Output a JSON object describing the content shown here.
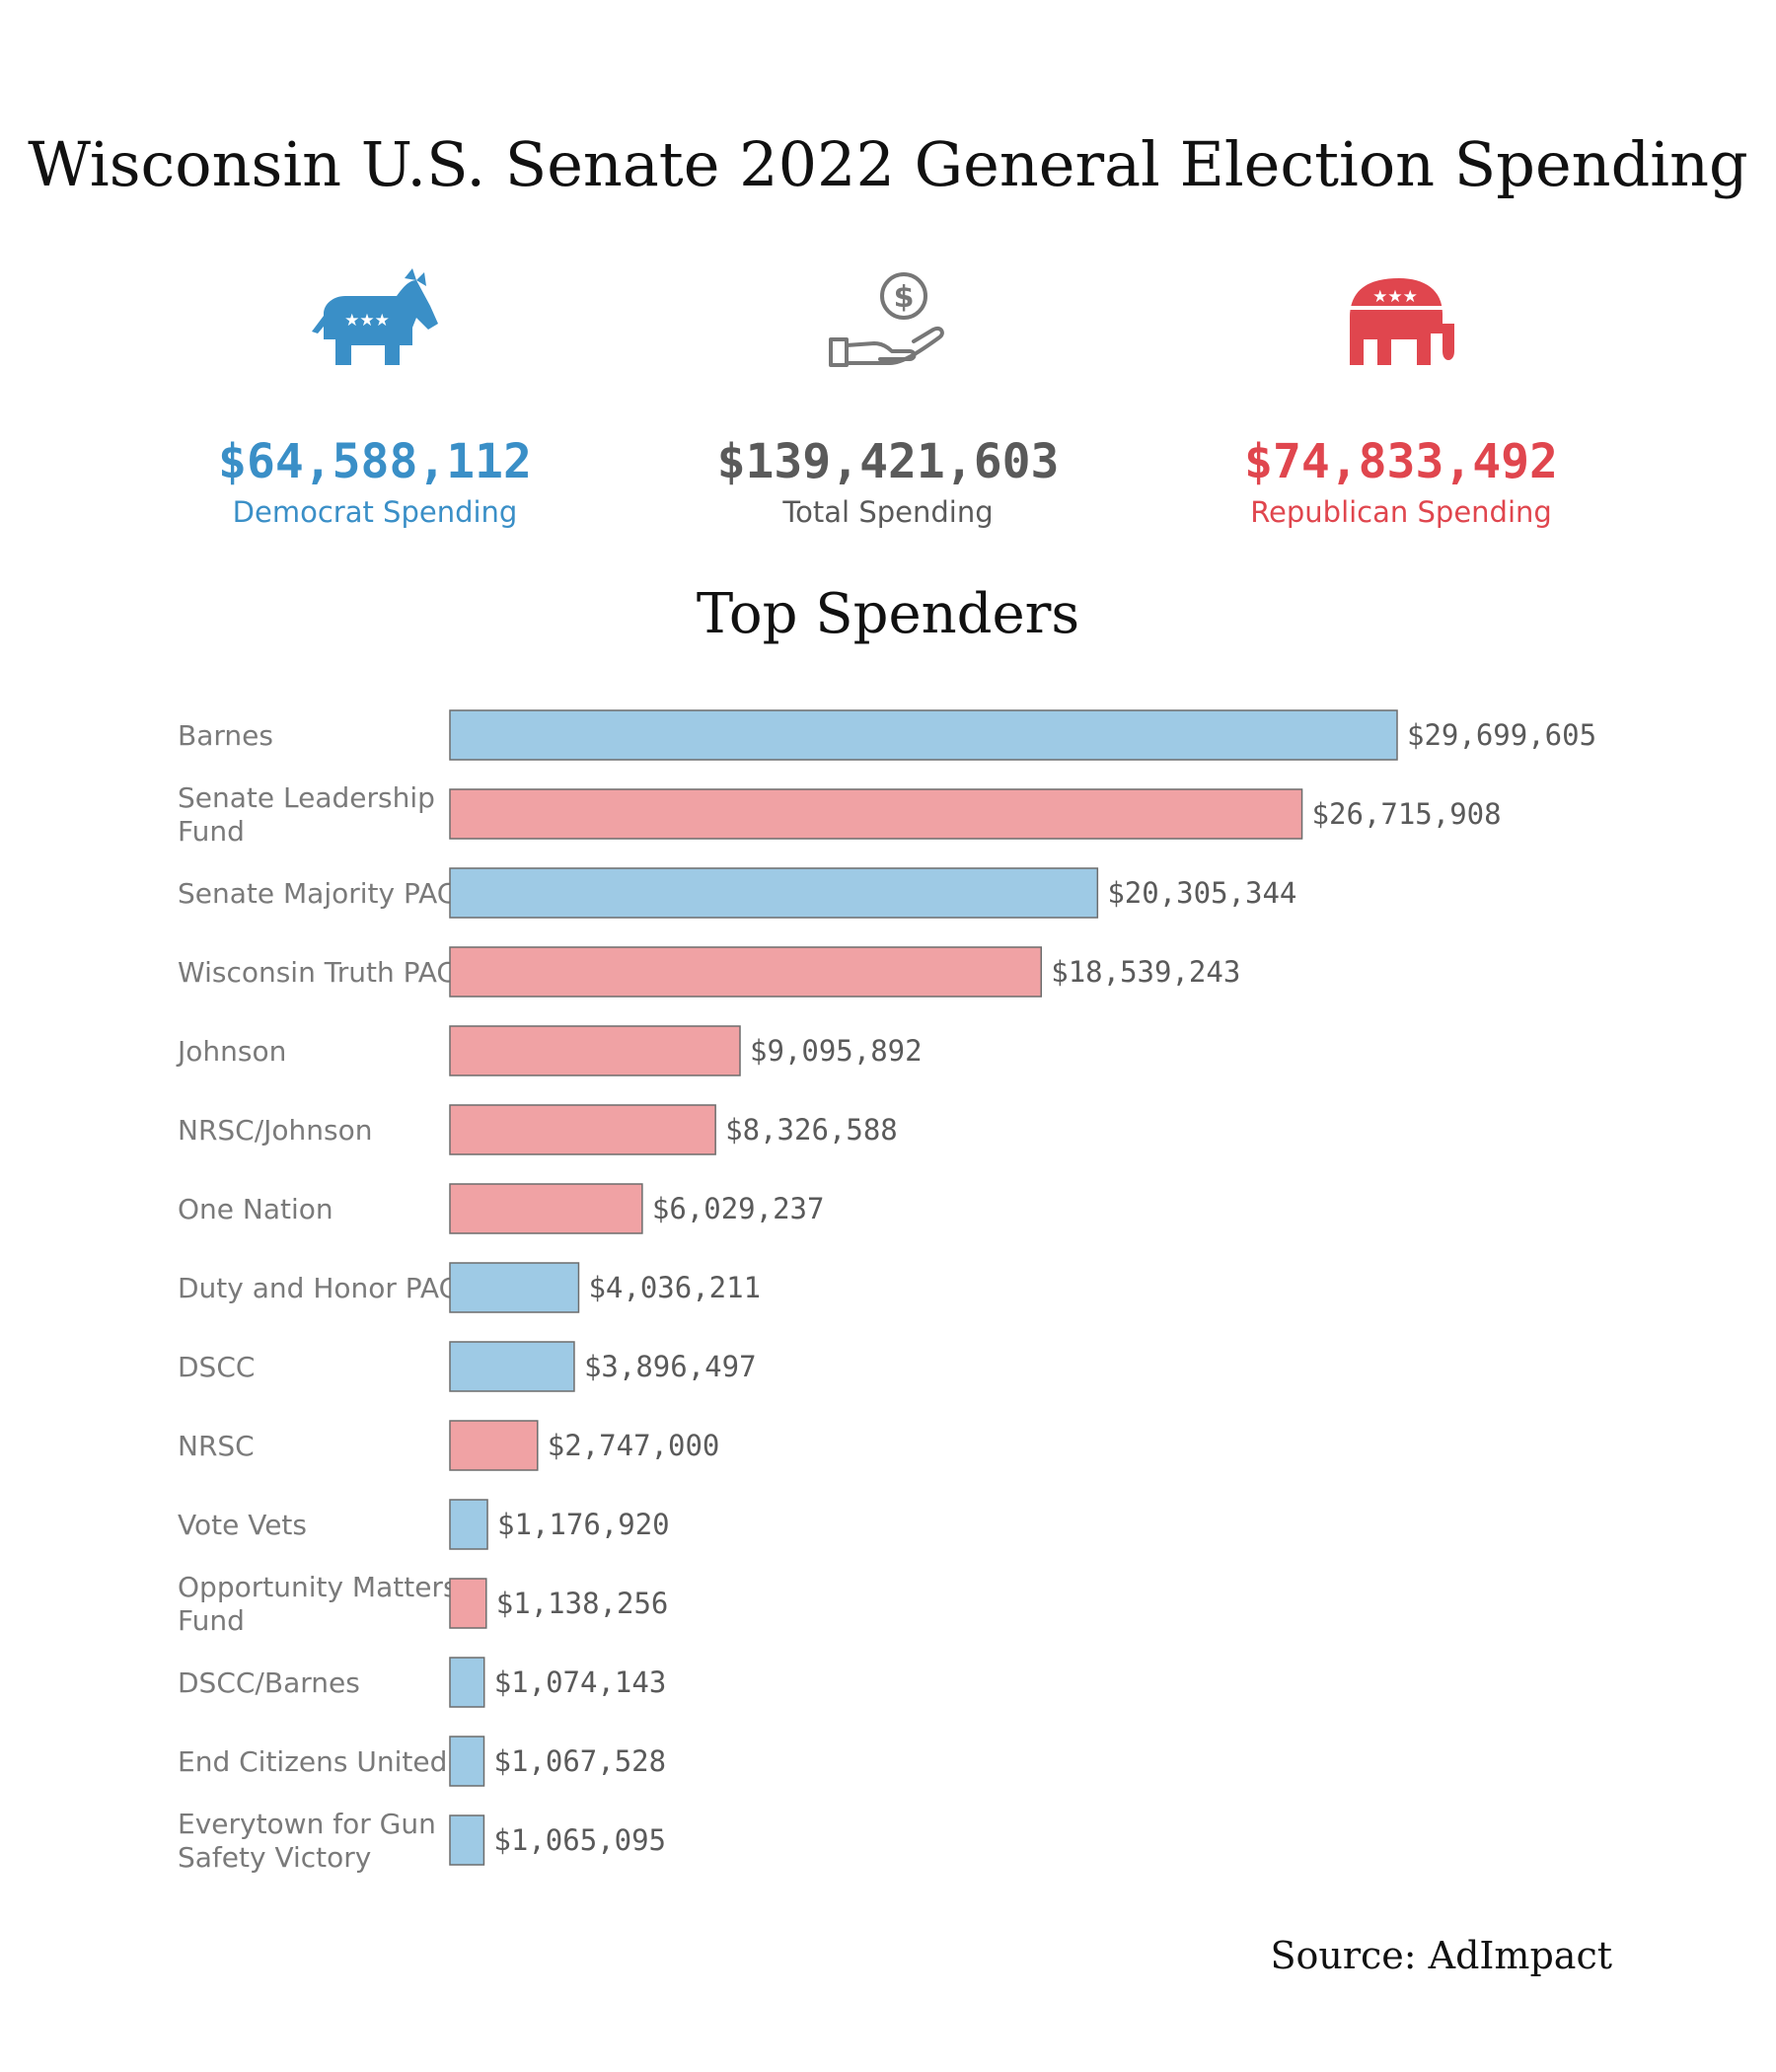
{
  "header": {
    "title": "Wisconsin U.S. Senate 2022 General Election Spending"
  },
  "summary": {
    "democrat": {
      "amount": "$64,588,112",
      "label": "Democrat Spending",
      "color": "#3a8fc7",
      "icon": "donkey-icon"
    },
    "total": {
      "amount": "$139,421,603",
      "label": "Total Spending",
      "color": "#5a5a5a",
      "icon": "money-hand-icon"
    },
    "republican": {
      "amount": "$74,833,492",
      "label": "Republican Spending",
      "color": "#e0464e",
      "icon": "elephant-icon"
    }
  },
  "chart_data": {
    "type": "bar",
    "orientation": "horizontal",
    "title": "Top Spenders",
    "colors": {
      "democrat": "#9ecae5",
      "republican": "#f0a2a4",
      "border": "#6d6d6d"
    },
    "bars": [
      {
        "name": "Barnes",
        "value": 29699605,
        "label": "$29,699,605",
        "party": "democrat"
      },
      {
        "name": "Senate Leadership Fund",
        "value": 26715908,
        "label": "$26,715,908",
        "party": "republican"
      },
      {
        "name": "Senate Majority PAC",
        "value": 20305344,
        "label": "$20,305,344",
        "party": "democrat"
      },
      {
        "name": "Wisconsin Truth PAC",
        "value": 18539243,
        "label": "$18,539,243",
        "party": "republican"
      },
      {
        "name": "Johnson",
        "value": 9095892,
        "label": "$9,095,892",
        "party": "republican"
      },
      {
        "name": "NRSC/Johnson",
        "value": 8326588,
        "label": "$8,326,588",
        "party": "republican"
      },
      {
        "name": "One Nation",
        "value": 6029237,
        "label": "$6,029,237",
        "party": "republican"
      },
      {
        "name": "Duty and Honor PAC",
        "value": 4036211,
        "label": "$4,036,211",
        "party": "democrat"
      },
      {
        "name": "DSCC",
        "value": 3896497,
        "label": "$3,896,497",
        "party": "democrat"
      },
      {
        "name": "NRSC",
        "value": 2747000,
        "label": "$2,747,000",
        "party": "republican"
      },
      {
        "name": "Vote Vets",
        "value": 1176920,
        "label": "$1,176,920",
        "party": "democrat"
      },
      {
        "name": "Opportunity Matters Fund",
        "value": 1138256,
        "label": "$1,138,256",
        "party": "republican"
      },
      {
        "name": "DSCC/Barnes",
        "value": 1074143,
        "label": "$1,074,143",
        "party": "democrat"
      },
      {
        "name": "End Citizens United",
        "value": 1067528,
        "label": "$1,067,528",
        "party": "democrat"
      },
      {
        "name": "Everytown for Gun Safety Victory",
        "value": 1065095,
        "label": "$1,065,095",
        "party": "democrat"
      }
    ],
    "grid": false
  },
  "footer": {
    "source": "Source: AdImpact"
  }
}
